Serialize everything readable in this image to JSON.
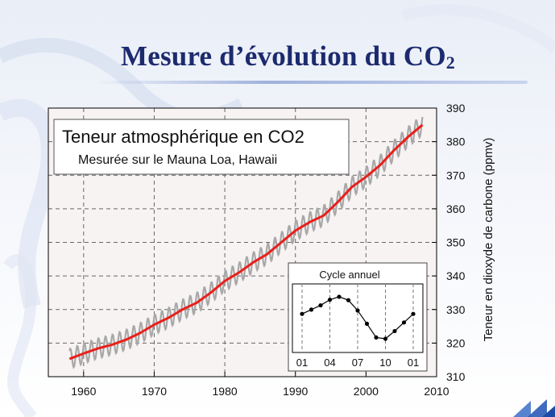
{
  "slide": {
    "title_main": "Mesure d’évolution du CO",
    "title_sub": "2"
  },
  "colors": {
    "title": "#1c2a6e",
    "plot_background": "#f7f3f3",
    "trend_line": "#e8201c",
    "monthly_line": "#a8a8a8",
    "inset_series": "#000000"
  },
  "chart_data": [
    {
      "type": "line",
      "title": "Teneur atmosphérique en CO2",
      "subtitle": "Mesurée sur le Mauna Loa, Hawaii",
      "xlabel": "",
      "ylabel": "Teneur en dioxyde de carbone (ppmv)",
      "xlim": [
        1955,
        2010
      ],
      "ylim": [
        310,
        390
      ],
      "x_ticks": [
        1960,
        1970,
        1980,
        1990,
        2000,
        2010
      ],
      "x_tick_labels": [
        "1960",
        "1970",
        "1980",
        "1990",
        "2000",
        "2010"
      ],
      "y_ticks": [
        310,
        320,
        330,
        340,
        350,
        360,
        370,
        380,
        390
      ],
      "y_tick_labels": [
        "310",
        "320",
        "330",
        "340",
        "350",
        "360",
        "370",
        "380",
        "390"
      ],
      "y_axis_side": "right",
      "grid": true,
      "grid_style": "dashed",
      "seasonal_amplitude": 3,
      "series": [
        {
          "role": "trend",
          "x": [
            1958,
            1960,
            1962,
            1964,
            1966,
            1968,
            1970,
            1972,
            1974,
            1976,
            1978,
            1980,
            1982,
            1984,
            1986,
            1988,
            1990,
            1992,
            1994,
            1996,
            1998,
            2000,
            2002,
            2004,
            2006,
            2008
          ],
          "values": [
            315.3,
            316.9,
            318.4,
            319.5,
            321.0,
            323.0,
            325.5,
            327.5,
            330.0,
            332.0,
            335.0,
            338.5,
            341.0,
            344.0,
            346.5,
            350.0,
            353.5,
            356.0,
            358.0,
            362.0,
            366.5,
            369.5,
            373.0,
            377.5,
            381.5,
            385.0
          ]
        },
        {
          "role": "monthly",
          "x": [
            1958,
            1960,
            1962,
            1964,
            1966,
            1968,
            1970,
            1972,
            1974,
            1976,
            1978,
            1980,
            1982,
            1984,
            1986,
            1988,
            1990,
            1992,
            1994,
            1996,
            1998,
            2000,
            2002,
            2004,
            2006,
            2008
          ],
          "values": [
            315.3,
            316.9,
            318.4,
            319.5,
            321.0,
            323.0,
            325.5,
            327.5,
            330.0,
            332.0,
            335.0,
            338.5,
            341.0,
            344.0,
            346.5,
            350.0,
            353.5,
            356.0,
            358.0,
            362.0,
            366.5,
            369.5,
            373.0,
            377.5,
            381.5,
            385.0
          ]
        }
      ]
    },
    {
      "type": "line",
      "title": "Cycle annuel",
      "categories": [
        "01",
        "02",
        "03",
        "04",
        "05",
        "06",
        "07",
        "08",
        "09",
        "10",
        "11",
        "12",
        "01"
      ],
      "x_tick_labels": [
        "01",
        "04",
        "07",
        "10",
        "01"
      ],
      "values": [
        0.0,
        1.0,
        2.0,
        3.3,
        4.0,
        3.2,
        0.8,
        -2.3,
        -5.5,
        -5.8,
        -4.0,
        -2.0,
        0.0
      ],
      "ylim": [
        -9,
        7
      ],
      "series_color": "#000000"
    }
  ]
}
